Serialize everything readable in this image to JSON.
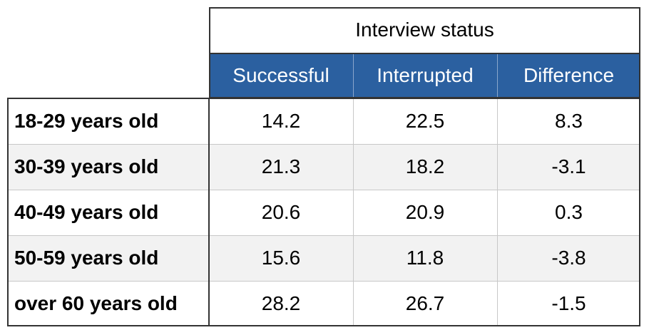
{
  "table": {
    "group_header": "Interview status",
    "columns": [
      "Successful",
      "Interrupted",
      "Difference"
    ],
    "rows": [
      [
        "18-29 years old",
        14.2,
        22.5,
        8.3
      ],
      [
        "30-39 years old",
        21.3,
        18.2,
        -3.1
      ],
      [
        "40-49 years old",
        20.6,
        20.9,
        0.3
      ],
      [
        "50-59 years old",
        15.6,
        11.8,
        -3.8
      ],
      [
        "over 60 years old",
        28.2,
        26.7,
        -1.5
      ]
    ]
  }
}
